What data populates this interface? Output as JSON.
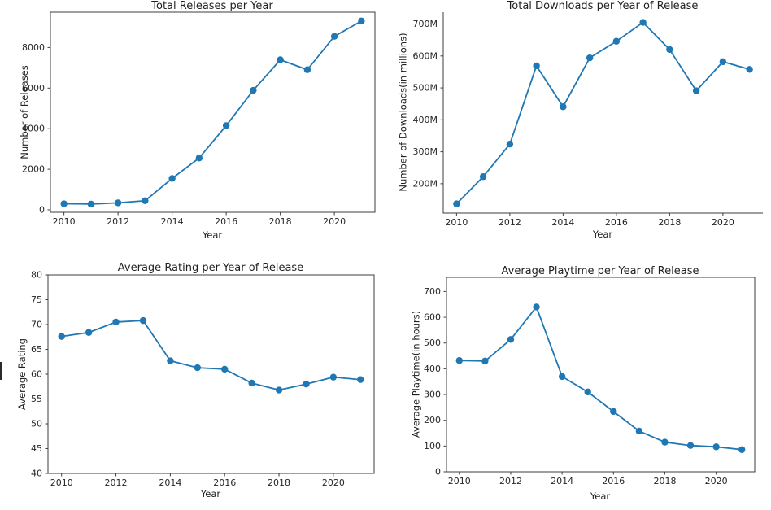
{
  "figure": {
    "background": "#ffffff",
    "accent_color": "#1f77b4",
    "grid": false,
    "legend": null
  },
  "chart_data": [
    {
      "id": "total-releases",
      "type": "line",
      "title": "Total Releases per Year",
      "xlabel": "Year",
      "ylabel": "Number of Releases",
      "x": [
        2010,
        2011,
        2012,
        2013,
        2014,
        2015,
        2016,
        2017,
        2018,
        2019,
        2020,
        2021
      ],
      "values": [
        300,
        285,
        345,
        450,
        1545,
        2555,
        4150,
        5890,
        7395,
        6905,
        8550,
        9305
      ],
      "xticks": [
        2010,
        2012,
        2014,
        2016,
        2018,
        2020
      ],
      "yticks": [
        0,
        2000,
        4000,
        6000,
        8000
      ],
      "ytick_labels": [
        "0",
        "2000",
        "4000",
        "6000",
        "8000"
      ],
      "xlim": [
        2009.5,
        2021.5
      ],
      "ylim": [
        -120,
        9740
      ],
      "line_color": "#1f77b4",
      "marker": "circle",
      "grid": false
    },
    {
      "id": "total-downloads",
      "type": "line",
      "title": "Total Downloads per Year of Release",
      "xlabel": "Year",
      "ylabel": "Number of Downloads(in millions)",
      "x": [
        2010,
        2011,
        2012,
        2013,
        2014,
        2015,
        2016,
        2017,
        2018,
        2019,
        2020,
        2021
      ],
      "values": [
        137,
        222,
        324,
        569,
        441,
        594,
        646,
        705,
        620,
        491,
        582,
        558
      ],
      "values_unit": "M",
      "xticks": [
        2010,
        2012,
        2014,
        2016,
        2018,
        2020
      ],
      "yticks": [
        200,
        300,
        400,
        500,
        600,
        700
      ],
      "ytick_labels": [
        "200M",
        "300M",
        "400M",
        "500M",
        "600M",
        "700M"
      ],
      "xlim": [
        2009.5,
        2021.5
      ],
      "ylim": [
        108,
        737
      ],
      "line_color": "#1f77b4",
      "marker": "circle",
      "grid": false
    },
    {
      "id": "average-rating",
      "type": "line",
      "title": "Average Rating per Year of Release",
      "xlabel": "Year",
      "ylabel": "Average Rating",
      "x": [
        2010,
        2011,
        2012,
        2013,
        2014,
        2015,
        2016,
        2017,
        2018,
        2019,
        2020,
        2021
      ],
      "values": [
        67.6,
        68.4,
        70.5,
        70.8,
        62.7,
        61.3,
        61.0,
        58.2,
        56.8,
        58.0,
        59.4,
        58.9
      ],
      "xticks": [
        2010,
        2012,
        2014,
        2016,
        2018,
        2020
      ],
      "yticks": [
        40,
        45,
        50,
        55,
        60,
        65,
        70,
        75,
        80
      ],
      "ytick_labels": [
        "40",
        "45",
        "50",
        "55",
        "60",
        "65",
        "70",
        "75",
        "80"
      ],
      "xlim": [
        2009.5,
        2021.5
      ],
      "ylim": [
        40,
        80
      ],
      "line_color": "#1f77b4",
      "marker": "circle",
      "grid": false
    },
    {
      "id": "average-playtime",
      "type": "line",
      "title": "Average Playtime per Year of Release",
      "xlabel": "Year",
      "ylabel": "Average Playtime(in hours)",
      "x": [
        2010,
        2011,
        2012,
        2013,
        2014,
        2015,
        2016,
        2017,
        2018,
        2019,
        2020,
        2021
      ],
      "values": [
        432,
        430,
        514,
        640,
        370,
        310,
        234,
        158,
        115,
        102,
        97,
        86
      ],
      "xticks": [
        2010,
        2012,
        2014,
        2016,
        2018,
        2020
      ],
      "yticks": [
        0,
        100,
        200,
        300,
        400,
        500,
        600,
        700
      ],
      "ytick_labels": [
        "0",
        "100",
        "200",
        "300",
        "400",
        "500",
        "600",
        "700"
      ],
      "xlim": [
        2009.5,
        2021.5
      ],
      "ylim": [
        0,
        755
      ],
      "line_color": "#1f77b4",
      "marker": "circle",
      "grid": false
    }
  ]
}
